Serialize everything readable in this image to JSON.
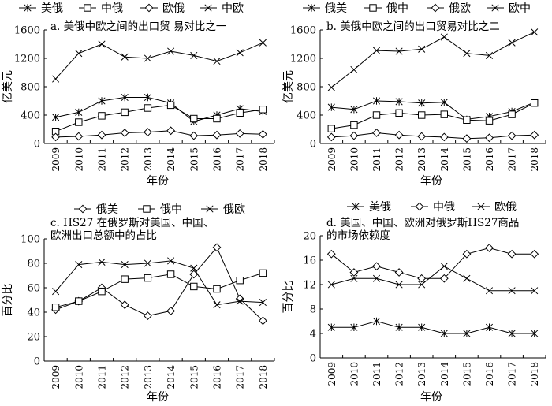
{
  "chart_data": [
    {
      "type": "line",
      "title": "a. 美俄中欧之间的出口贸 易对比之一",
      "xlabel": "年份",
      "ylabel": "亿美元",
      "ylim": [
        0,
        1600
      ],
      "yticks": [
        0,
        400,
        800,
        1200,
        1600
      ],
      "legend_placement": "top",
      "categories": [
        "2009",
        "2010",
        "2011",
        "2012",
        "2013",
        "2014",
        "2015",
        "2016",
        "2017",
        "2018"
      ],
      "series": [
        {
          "name": "美俄",
          "marker": "asterisk",
          "values": [
            370,
            440,
            600,
            650,
            650,
            570,
            310,
            400,
            490,
            450
          ]
        },
        {
          "name": "中俄",
          "marker": "square",
          "values": [
            170,
            300,
            390,
            440,
            500,
            540,
            350,
            350,
            430,
            480
          ]
        },
        {
          "name": "欧俄",
          "marker": "diamond",
          "values": [
            90,
            100,
            120,
            150,
            160,
            180,
            110,
            120,
            140,
            130
          ]
        },
        {
          "name": "中欧",
          "marker": "x",
          "values": [
            910,
            1270,
            1400,
            1220,
            1200,
            1300,
            1240,
            1160,
            1280,
            1420
          ]
        }
      ]
    },
    {
      "type": "line",
      "title": "b. 美俄中欧之间的出口贸易对比之二",
      "xlabel": "年份",
      "ylabel": "亿美元",
      "ylim": [
        0,
        1600
      ],
      "yticks": [
        0,
        400,
        800,
        1200,
        1600
      ],
      "legend_placement": "top",
      "categories": [
        "2009",
        "2010",
        "2011",
        "2012",
        "2013",
        "2014",
        "2015",
        "2016",
        "2017",
        "2018"
      ],
      "series": [
        {
          "name": "俄美",
          "marker": "asterisk",
          "values": [
            510,
            480,
            600,
            590,
            570,
            580,
            340,
            380,
            450,
            580
          ]
        },
        {
          "name": "俄中",
          "marker": "square",
          "values": [
            210,
            260,
            400,
            430,
            400,
            410,
            330,
            320,
            410,
            570
          ]
        },
        {
          "name": "俄欧",
          "marker": "diamond",
          "values": [
            90,
            110,
            150,
            120,
            100,
            90,
            70,
            80,
            110,
            120
          ]
        },
        {
          "name": "欧中",
          "marker": "x",
          "values": [
            790,
            1040,
            1310,
            1300,
            1330,
            1500,
            1270,
            1240,
            1420,
            1570
          ]
        }
      ]
    },
    {
      "type": "line",
      "title": "c. HS27 在俄罗斯对美国、中国、欧洲出口总额中的占比",
      "title_lines": [
        "c. HS27 在俄罗斯对美国、中国、",
        "欧洲出口总额中的占比"
      ],
      "xlabel": "年份",
      "ylabel": "百分比",
      "ylim": [
        0,
        100
      ],
      "yticks": [
        0,
        20,
        40,
        60,
        80,
        100
      ],
      "legend_placement": "top",
      "categories": [
        "2009",
        "2010",
        "2011",
        "2012",
        "2013",
        "2014",
        "2015",
        "2016",
        "2017",
        "2018"
      ],
      "series": [
        {
          "name": "俄美",
          "marker": "diamond",
          "values": [
            42,
            49,
            60,
            46,
            37,
            41,
            71,
            93,
            51,
            33
          ]
        },
        {
          "name": "俄中",
          "marker": "square",
          "values": [
            44,
            49,
            57,
            67,
            68,
            71,
            61,
            59,
            66,
            72
          ]
        },
        {
          "name": "俄欧",
          "marker": "x",
          "values": [
            57,
            79,
            81,
            79,
            80,
            82,
            76,
            46,
            49,
            48
          ]
        }
      ]
    },
    {
      "type": "line",
      "title": "d. 美国、中国、欧洲对俄罗斯HS27商品的市场依赖度",
      "title_lines": [
        "d. 美国、中国、欧洲对俄罗斯HS27商品",
        "的市场依赖度"
      ],
      "xlabel": "年份",
      "ylabel": "百分比",
      "ylim": [
        0,
        20
      ],
      "yticks": [
        0,
        4,
        8,
        12,
        16,
        20
      ],
      "legend_placement": "top",
      "categories": [
        "2009",
        "2010",
        "2011",
        "2012",
        "2013",
        "2014",
        "2015",
        "2016",
        "2017",
        "2018"
      ],
      "series": [
        {
          "name": "美俄",
          "marker": "asterisk",
          "values": [
            5,
            5,
            6,
            5,
            5,
            4,
            4,
            5,
            4,
            4
          ]
        },
        {
          "name": "中俄",
          "marker": "diamond",
          "values": [
            17,
            14,
            15,
            14,
            13,
            13,
            17,
            18,
            17,
            17
          ]
        },
        {
          "name": "欧俄",
          "marker": "x",
          "values": [
            12,
            13,
            13,
            12,
            12,
            15,
            13,
            11,
            11,
            11
          ]
        }
      ]
    }
  ]
}
